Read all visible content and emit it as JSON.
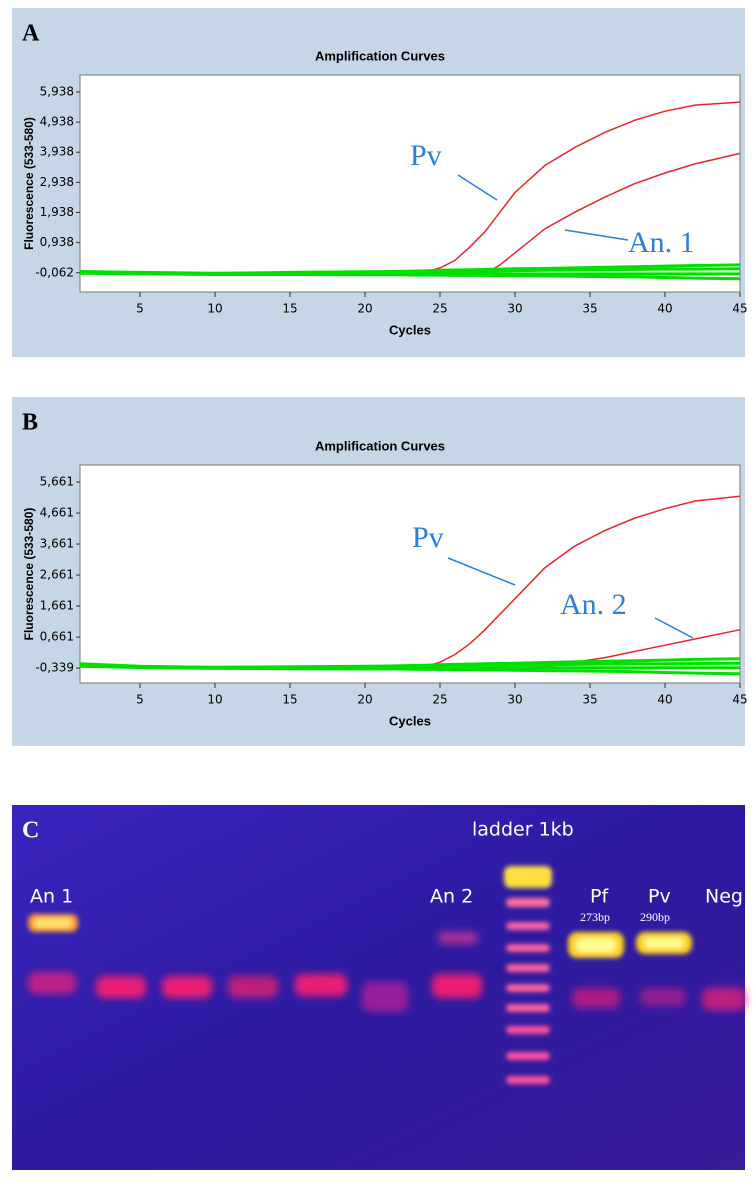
{
  "chart_data": [
    {
      "type": "line",
      "panel": "A",
      "title": "Amplification Curves",
      "x_label": "Cycles",
      "y_label": "Fluorescence (533-580)",
      "xlim": [
        1,
        45
      ],
      "ylim": [
        -0.7,
        6.5
      ],
      "xticks": [
        5,
        10,
        15,
        20,
        25,
        30,
        35,
        40,
        45
      ],
      "yticks": [
        {
          "value": -0.062,
          "label": "-0,062"
        },
        {
          "value": 0.938,
          "label": "0,938"
        },
        {
          "value": 1.938,
          "label": "1,938"
        },
        {
          "value": 2.938,
          "label": "2,938"
        },
        {
          "value": 3.938,
          "label": "3,938"
        },
        {
          "value": 4.938,
          "label": "4,938"
        },
        {
          "value": 5.938,
          "label": "5,938"
        }
      ],
      "x": [
        1,
        5,
        10,
        15,
        20,
        22,
        24,
        25,
        26,
        27,
        28,
        29,
        30,
        32,
        34,
        36,
        38,
        40,
        42,
        45
      ],
      "series": [
        {
          "name": "Pv",
          "color": "#e8262b",
          "values": [
            -0.06,
            -0.08,
            -0.1,
            -0.1,
            -0.1,
            -0.1,
            -0.05,
            0.1,
            0.35,
            0.8,
            1.3,
            1.95,
            2.6,
            3.5,
            4.1,
            4.6,
            5.0,
            5.3,
            5.5,
            5.6
          ]
        },
        {
          "name": "An. 1",
          "color": "#e8262b",
          "values": [
            -0.06,
            -0.08,
            -0.1,
            -0.1,
            -0.1,
            -0.1,
            -0.1,
            -0.1,
            -0.1,
            -0.1,
            -0.1,
            0.2,
            0.6,
            1.4,
            1.95,
            2.45,
            2.9,
            3.25,
            3.55,
            3.9
          ]
        },
        {
          "color": "#00e000",
          "values": [
            -0.02,
            -0.05,
            -0.08,
            -0.05,
            -0.03,
            -0.02,
            0,
            0.02,
            0.03,
            0.04,
            0.05,
            0.06,
            0.07,
            0.08,
            0.1,
            0.12,
            0.14,
            0.16,
            0.18,
            0.2
          ]
        },
        {
          "color": "#00e000",
          "values": [
            -0.05,
            -0.08,
            -0.1,
            -0.1,
            -0.1,
            -0.1,
            -0.1,
            -0.1,
            -0.1,
            -0.1,
            -0.1,
            -0.1,
            -0.1,
            -0.1,
            -0.1,
            -0.1,
            -0.1,
            -0.1,
            -0.1,
            -0.1
          ]
        },
        {
          "color": "#00e000",
          "values": [
            -0.08,
            -0.1,
            -0.12,
            -0.12,
            -0.13,
            -0.13,
            -0.14,
            -0.14,
            -0.15,
            -0.15,
            -0.15,
            -0.16,
            -0.16,
            -0.17,
            -0.18,
            -0.19,
            -0.2,
            -0.22,
            -0.24,
            -0.26
          ]
        },
        {
          "color": "#00e000",
          "values": [
            -0.04,
            -0.07,
            -0.09,
            -0.08,
            -0.06,
            -0.05,
            -0.04,
            -0.03,
            -0.02,
            -0.02,
            -0.01,
            0,
            0.01,
            0.02,
            0.03,
            0.04,
            0.05,
            0.06,
            0.06,
            0.07
          ]
        }
      ]
    },
    {
      "type": "line",
      "panel": "B",
      "title": "Amplification Curves",
      "x_label": "Cycles",
      "y_label": "Fluorescence (533-580)",
      "xlim": [
        1,
        45
      ],
      "ylim": [
        -0.82,
        6.21
      ],
      "xticks": [
        5,
        10,
        15,
        20,
        25,
        30,
        35,
        40,
        45
      ],
      "yticks": [
        {
          "value": -0.339,
          "label": "-0,339"
        },
        {
          "value": 0.661,
          "label": "0,661"
        },
        {
          "value": 1.661,
          "label": "1,661"
        },
        {
          "value": 2.661,
          "label": "2,661"
        },
        {
          "value": 3.661,
          "label": "3,661"
        },
        {
          "value": 4.661,
          "label": "4,661"
        },
        {
          "value": 5.661,
          "label": "5,661"
        }
      ],
      "x": [
        1,
        5,
        10,
        15,
        20,
        22,
        24,
        25,
        26,
        27,
        28,
        29,
        30,
        32,
        34,
        36,
        38,
        40,
        42,
        45
      ],
      "series": [
        {
          "name": "Pv",
          "color": "#e8262b",
          "values": [
            -0.25,
            -0.3,
            -0.33,
            -0.35,
            -0.35,
            -0.35,
            -0.3,
            -0.15,
            0.1,
            0.45,
            0.9,
            1.4,
            1.9,
            2.9,
            3.6,
            4.1,
            4.5,
            4.8,
            5.05,
            5.2
          ]
        },
        {
          "name": "An. 2",
          "color": "#e8262b",
          "values": [
            -0.25,
            -0.3,
            -0.33,
            -0.35,
            -0.35,
            -0.35,
            -0.35,
            -0.35,
            -0.35,
            -0.35,
            -0.35,
            -0.35,
            -0.35,
            -0.3,
            -0.15,
            0,
            0.2,
            0.4,
            0.6,
            0.9
          ]
        },
        {
          "color": "#00e000",
          "values": [
            -0.2,
            -0.28,
            -0.32,
            -0.3,
            -0.28,
            -0.27,
            -0.25,
            -0.23,
            -0.22,
            -0.21,
            -0.2,
            -0.19,
            -0.18,
            -0.16,
            -0.14,
            -0.12,
            -0.1,
            -0.08,
            -0.06,
            -0.04
          ]
        },
        {
          "color": "#00e000",
          "values": [
            -0.25,
            -0.3,
            -0.33,
            -0.33,
            -0.33,
            -0.33,
            -0.33,
            -0.33,
            -0.33,
            -0.33,
            -0.33,
            -0.33,
            -0.33,
            -0.33,
            -0.33,
            -0.33,
            -0.33,
            -0.33,
            -0.33,
            -0.33
          ]
        },
        {
          "color": "#00e000",
          "values": [
            -0.28,
            -0.32,
            -0.35,
            -0.36,
            -0.37,
            -0.37,
            -0.38,
            -0.38,
            -0.39,
            -0.39,
            -0.4,
            -0.4,
            -0.41,
            -0.42,
            -0.43,
            -0.44,
            -0.46,
            -0.48,
            -0.5,
            -0.52
          ]
        },
        {
          "color": "#00e000",
          "values": [
            -0.24,
            -0.29,
            -0.31,
            -0.3,
            -0.29,
            -0.28,
            -0.27,
            -0.26,
            -0.26,
            -0.25,
            -0.25,
            -0.24,
            -0.24,
            -0.23,
            -0.22,
            -0.21,
            -0.2,
            -0.2,
            -0.19,
            -0.18
          ]
        }
      ]
    }
  ],
  "gel": {
    "panel": "C",
    "ladder": "ladder 1kb",
    "lanes": [
      {
        "label": "An 1"
      },
      {
        "label": "An 2"
      },
      {
        "label": "Pf",
        "size": "273bp"
      },
      {
        "label": "Pv",
        "size": "290bp"
      },
      {
        "label": "Neg"
      }
    ]
  }
}
